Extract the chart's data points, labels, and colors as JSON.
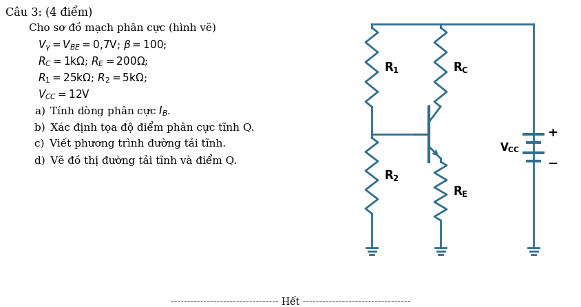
{
  "bg_color": "#ffffff",
  "circuit_color": "#2e6e8e",
  "text_color": "#000000",
  "title_line": "Câu 3: (4 điểm)",
  "line0": "Cho sơ đồ mạch phân cực (hình vẽ)",
  "line1": "$V_\\gamma = V_{BE} = 0{,}7\\mathrm{V}$; $\\beta = 100$;",
  "line2": "$R_C = 1\\mathrm{k\\Omega}$; $R_E = 200\\mathrm{\\Omega}$;",
  "line3": "$R_1 = 25\\mathrm{k\\Omega}$; $R_2 = 5\\mathrm{k\\Omega}$;",
  "line4": "$V_{CC} = 12\\mathrm{V}$",
  "line5": "a) Tính dòng phân cực $I_B$.",
  "line6": "b) Xác định tọa độ điểm phân cực tĩnh Q.",
  "line7": "c) Viết phương trình đường tải tĩnh.",
  "line8": "d) Vẽ đồ thị đường tải tĩnh và điểm Q.",
  "footer": "--------------------------------- Hết ---------------------------------"
}
